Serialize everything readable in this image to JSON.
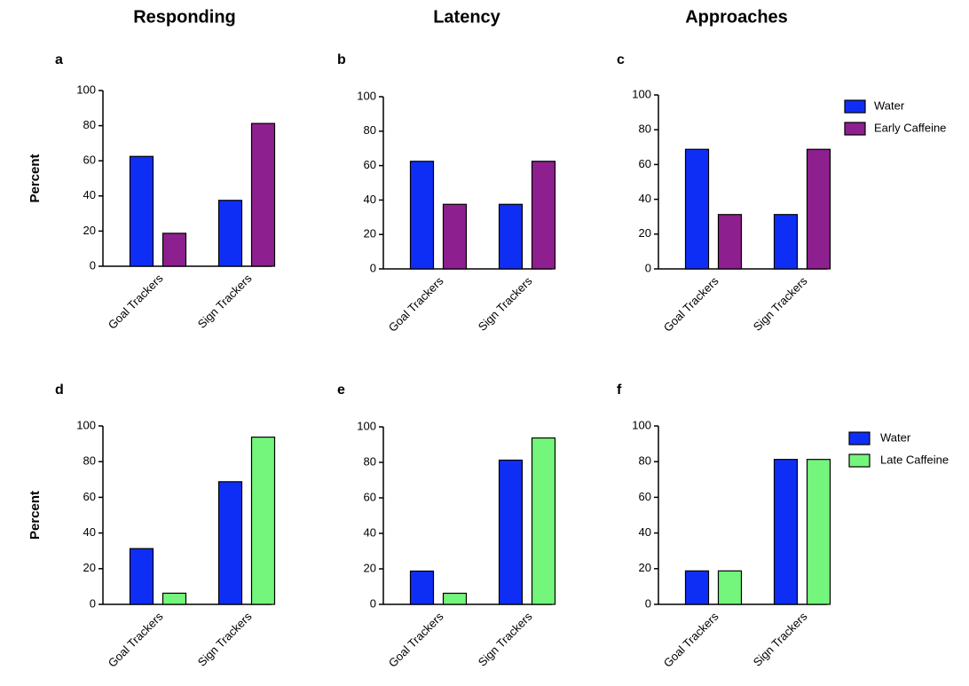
{
  "chart_data": [
    {
      "type": "bar",
      "title": "Responding",
      "label": "a",
      "ylabel": "Percent",
      "categories": [
        "Goal Trackers",
        "Sign Trackers"
      ],
      "series": [
        {
          "name": "Water",
          "color": "#0f2ef5",
          "values": [
            62.5,
            37.5
          ]
        },
        {
          "name": "Early Caffeine",
          "color": "#8e1f8e",
          "values": [
            18.75,
            81.25
          ]
        }
      ],
      "ylim": [
        0,
        100
      ],
      "yticks": [
        0,
        20,
        40,
        60,
        80,
        100
      ]
    },
    {
      "type": "bar",
      "title": "Latency",
      "label": "b",
      "categories": [
        "Goal Trackers",
        "Sign Trackers"
      ],
      "series": [
        {
          "name": "Water",
          "color": "#0f2ef5",
          "values": [
            62.5,
            37.5
          ]
        },
        {
          "name": "Early Caffeine",
          "color": "#8e1f8e",
          "values": [
            37.5,
            62.5
          ]
        }
      ],
      "ylim": [
        0,
        100
      ],
      "yticks": [
        0,
        20,
        40,
        60,
        80,
        100
      ]
    },
    {
      "type": "bar",
      "title": "Approaches",
      "label": "c",
      "legend": "right",
      "categories": [
        "Goal Trackers",
        "Sign Trackers"
      ],
      "series": [
        {
          "name": "Water",
          "color": "#0f2ef5",
          "values": [
            68.75,
            31.25
          ]
        },
        {
          "name": "Early Caffeine",
          "color": "#8e1f8e",
          "values": [
            31.25,
            68.75
          ]
        }
      ],
      "ylim": [
        0,
        100
      ],
      "yticks": [
        0,
        20,
        40,
        60,
        80,
        100
      ]
    },
    {
      "type": "bar",
      "label": "d",
      "ylabel": "Percent",
      "categories": [
        "Goal Trackers",
        "Sign Trackers"
      ],
      "series": [
        {
          "name": "Water",
          "color": "#0f2ef5",
          "values": [
            31.25,
            68.75
          ]
        },
        {
          "name": "Late Caffeine",
          "color": "#74f57b",
          "values": [
            6.25,
            93.75
          ]
        }
      ],
      "ylim": [
        0,
        100
      ],
      "yticks": [
        0,
        20,
        40,
        60,
        80,
        100
      ]
    },
    {
      "type": "bar",
      "label": "e",
      "categories": [
        "Goal Trackers",
        "Sign Trackers"
      ],
      "series": [
        {
          "name": "Water",
          "color": "#0f2ef5",
          "values": [
            18.75,
            81.25
          ]
        },
        {
          "name": "Late Caffeine",
          "color": "#74f57b",
          "values": [
            6.25,
            93.75
          ]
        }
      ],
      "ylim": [
        0,
        100
      ],
      "yticks": [
        0,
        20,
        40,
        60,
        80,
        100
      ]
    },
    {
      "type": "bar",
      "label": "f",
      "legend": "right",
      "categories": [
        "Goal Trackers",
        "Sign Trackers"
      ],
      "series": [
        {
          "name": "Water",
          "color": "#0f2ef5",
          "values": [
            18.75,
            81.25
          ]
        },
        {
          "name": "Late Caffeine",
          "color": "#74f57b",
          "values": [
            18.75,
            81.25
          ]
        }
      ],
      "ylim": [
        0,
        100
      ],
      "yticks": [
        0,
        20,
        40,
        60,
        80,
        100
      ]
    }
  ]
}
